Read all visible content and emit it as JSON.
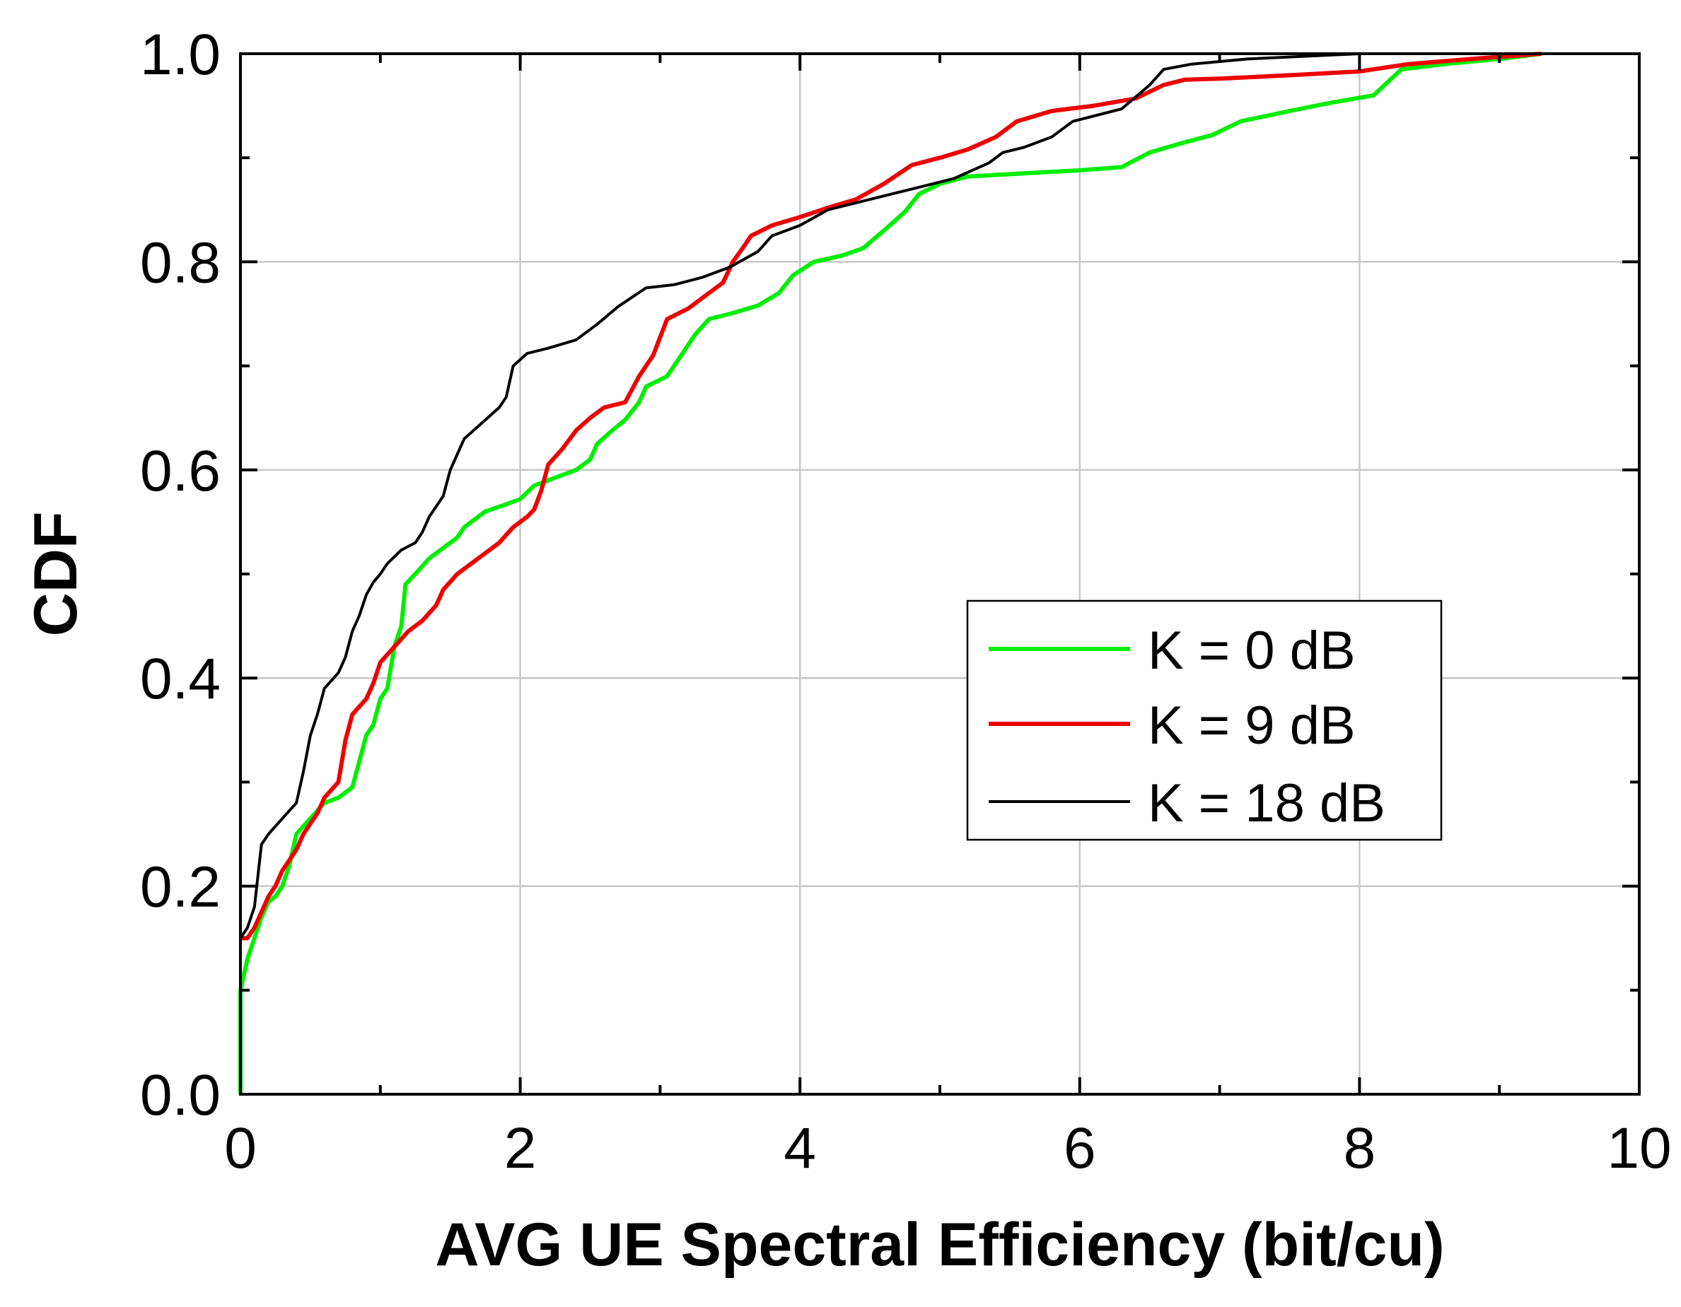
{
  "chart_data": {
    "type": "line",
    "title": "",
    "xlabel": "AVG UE Spectral Efficiency (bit/cu)",
    "ylabel": "CDF",
    "xlim": [
      0,
      10
    ],
    "ylim": [
      0,
      1.0
    ],
    "grid": true,
    "legend_position": "center-right",
    "x_ticks": [
      "0",
      "2",
      "4",
      "6",
      "8",
      "10"
    ],
    "y_ticks": [
      "0.0",
      "0.2",
      "0.4",
      "0.6",
      "0.8",
      "1.0"
    ],
    "series": [
      {
        "name": "K = 0 dB",
        "color": "#00ee00",
        "points": [
          [
            0,
            0
          ],
          [
            0,
            0.1
          ],
          [
            0.05,
            0.13
          ],
          [
            0.1,
            0.15
          ],
          [
            0.15,
            0.17
          ],
          [
            0.2,
            0.185
          ],
          [
            0.25,
            0.19
          ],
          [
            0.3,
            0.2
          ],
          [
            0.35,
            0.22
          ],
          [
            0.4,
            0.25
          ],
          [
            0.5,
            0.265
          ],
          [
            0.6,
            0.28
          ],
          [
            0.7,
            0.285
          ],
          [
            0.8,
            0.295
          ],
          [
            0.85,
            0.32
          ],
          [
            0.9,
            0.345
          ],
          [
            0.95,
            0.355
          ],
          [
            1.0,
            0.38
          ],
          [
            1.05,
            0.39
          ],
          [
            1.1,
            0.43
          ],
          [
            1.15,
            0.45
          ],
          [
            1.18,
            0.49
          ],
          [
            1.25,
            0.5
          ],
          [
            1.35,
            0.515
          ],
          [
            1.45,
            0.525
          ],
          [
            1.55,
            0.535
          ],
          [
            1.6,
            0.545
          ],
          [
            1.75,
            0.56
          ],
          [
            1.9,
            0.567
          ],
          [
            2.0,
            0.572
          ],
          [
            2.1,
            0.585
          ],
          [
            2.3,
            0.595
          ],
          [
            2.4,
            0.6
          ],
          [
            2.5,
            0.61
          ],
          [
            2.55,
            0.625
          ],
          [
            2.65,
            0.637
          ],
          [
            2.75,
            0.648
          ],
          [
            2.85,
            0.665
          ],
          [
            2.9,
            0.68
          ],
          [
            3.05,
            0.69
          ],
          [
            3.15,
            0.71
          ],
          [
            3.25,
            0.73
          ],
          [
            3.35,
            0.745
          ],
          [
            3.5,
            0.75
          ],
          [
            3.7,
            0.758
          ],
          [
            3.85,
            0.77
          ],
          [
            3.95,
            0.787
          ],
          [
            4.1,
            0.8
          ],
          [
            4.3,
            0.806
          ],
          [
            4.45,
            0.813
          ],
          [
            4.6,
            0.83
          ],
          [
            4.75,
            0.848
          ],
          [
            4.85,
            0.865
          ],
          [
            5.0,
            0.875
          ],
          [
            5.2,
            0.882
          ],
          [
            5.6,
            0.885
          ],
          [
            6.0,
            0.888
          ],
          [
            6.3,
            0.891
          ],
          [
            6.5,
            0.905
          ],
          [
            6.7,
            0.913
          ],
          [
            6.95,
            0.922
          ],
          [
            7.15,
            0.935
          ],
          [
            7.5,
            0.945
          ],
          [
            7.8,
            0.953
          ],
          [
            8.1,
            0.96
          ],
          [
            8.3,
            0.985
          ],
          [
            8.6,
            0.99
          ],
          [
            9.0,
            0.995
          ],
          [
            9.3,
            1.0
          ]
        ]
      },
      {
        "name": "K = 9 dB",
        "color": "#ee0000",
        "points": [
          [
            0,
            0.15
          ],
          [
            0.05,
            0.15
          ],
          [
            0.1,
            0.16
          ],
          [
            0.2,
            0.19
          ],
          [
            0.25,
            0.2
          ],
          [
            0.3,
            0.215
          ],
          [
            0.35,
            0.225
          ],
          [
            0.4,
            0.235
          ],
          [
            0.45,
            0.25
          ],
          [
            0.55,
            0.27
          ],
          [
            0.6,
            0.285
          ],
          [
            0.7,
            0.3
          ],
          [
            0.75,
            0.34
          ],
          [
            0.8,
            0.365
          ],
          [
            0.9,
            0.38
          ],
          [
            0.95,
            0.395
          ],
          [
            1.0,
            0.415
          ],
          [
            1.1,
            0.43
          ],
          [
            1.2,
            0.445
          ],
          [
            1.3,
            0.455
          ],
          [
            1.4,
            0.47
          ],
          [
            1.45,
            0.485
          ],
          [
            1.55,
            0.5
          ],
          [
            1.65,
            0.51
          ],
          [
            1.75,
            0.52
          ],
          [
            1.85,
            0.53
          ],
          [
            1.95,
            0.545
          ],
          [
            2.05,
            0.555
          ],
          [
            2.1,
            0.562
          ],
          [
            2.15,
            0.58
          ],
          [
            2.2,
            0.605
          ],
          [
            2.3,
            0.62
          ],
          [
            2.4,
            0.638
          ],
          [
            2.5,
            0.65
          ],
          [
            2.6,
            0.66
          ],
          [
            2.75,
            0.665
          ],
          [
            2.85,
            0.69
          ],
          [
            2.95,
            0.71
          ],
          [
            3.05,
            0.745
          ],
          [
            3.2,
            0.755
          ],
          [
            3.3,
            0.765
          ],
          [
            3.45,
            0.78
          ],
          [
            3.52,
            0.8
          ],
          [
            3.6,
            0.815
          ],
          [
            3.65,
            0.825
          ],
          [
            3.8,
            0.835
          ],
          [
            4.0,
            0.843
          ],
          [
            4.2,
            0.852
          ],
          [
            4.4,
            0.86
          ],
          [
            4.6,
            0.875
          ],
          [
            4.8,
            0.893
          ],
          [
            5.0,
            0.9
          ],
          [
            5.2,
            0.908
          ],
          [
            5.4,
            0.92
          ],
          [
            5.55,
            0.935
          ],
          [
            5.8,
            0.945
          ],
          [
            6.1,
            0.95
          ],
          [
            6.4,
            0.957
          ],
          [
            6.6,
            0.97
          ],
          [
            6.75,
            0.975
          ],
          [
            7.0,
            0.976
          ],
          [
            7.3,
            0.978
          ],
          [
            7.6,
            0.98
          ],
          [
            8.0,
            0.983
          ],
          [
            8.35,
            0.99
          ],
          [
            8.8,
            0.995
          ],
          [
            9.3,
            1.0
          ]
        ]
      },
      {
        "name": "K = 18 dB",
        "color": "#000000",
        "points": [
          [
            0,
            0
          ],
          [
            0,
            0.15
          ],
          [
            0.05,
            0.16
          ],
          [
            0.1,
            0.18
          ],
          [
            0.15,
            0.24
          ],
          [
            0.2,
            0.25
          ],
          [
            0.3,
            0.265
          ],
          [
            0.4,
            0.28
          ],
          [
            0.45,
            0.31
          ],
          [
            0.5,
            0.345
          ],
          [
            0.55,
            0.365
          ],
          [
            0.6,
            0.39
          ],
          [
            0.7,
            0.405
          ],
          [
            0.75,
            0.42
          ],
          [
            0.8,
            0.445
          ],
          [
            0.85,
            0.46
          ],
          [
            0.9,
            0.48
          ],
          [
            0.95,
            0.492
          ],
          [
            1.0,
            0.5
          ],
          [
            1.05,
            0.51
          ],
          [
            1.15,
            0.523
          ],
          [
            1.25,
            0.53
          ],
          [
            1.3,
            0.54
          ],
          [
            1.35,
            0.555
          ],
          [
            1.45,
            0.575
          ],
          [
            1.5,
            0.6
          ],
          [
            1.6,
            0.63
          ],
          [
            1.7,
            0.642
          ],
          [
            1.85,
            0.66
          ],
          [
            1.9,
            0.67
          ],
          [
            1.95,
            0.7
          ],
          [
            2.05,
            0.712
          ],
          [
            2.2,
            0.717
          ],
          [
            2.4,
            0.725
          ],
          [
            2.55,
            0.74
          ],
          [
            2.7,
            0.757
          ],
          [
            2.9,
            0.775
          ],
          [
            3.1,
            0.778
          ],
          [
            3.3,
            0.785
          ],
          [
            3.5,
            0.795
          ],
          [
            3.7,
            0.81
          ],
          [
            3.8,
            0.825
          ],
          [
            4.0,
            0.835
          ],
          [
            4.2,
            0.85
          ],
          [
            4.5,
            0.86
          ],
          [
            4.8,
            0.87
          ],
          [
            5.1,
            0.88
          ],
          [
            5.35,
            0.895
          ],
          [
            5.45,
            0.905
          ],
          [
            5.6,
            0.91
          ],
          [
            5.8,
            0.92
          ],
          [
            5.95,
            0.935
          ],
          [
            6.3,
            0.947
          ],
          [
            6.5,
            0.97
          ],
          [
            6.6,
            0.985
          ],
          [
            6.8,
            0.99
          ],
          [
            7.2,
            0.995
          ],
          [
            8.0,
            1.0
          ],
          [
            8.35,
            1.0
          ]
        ]
      }
    ]
  }
}
